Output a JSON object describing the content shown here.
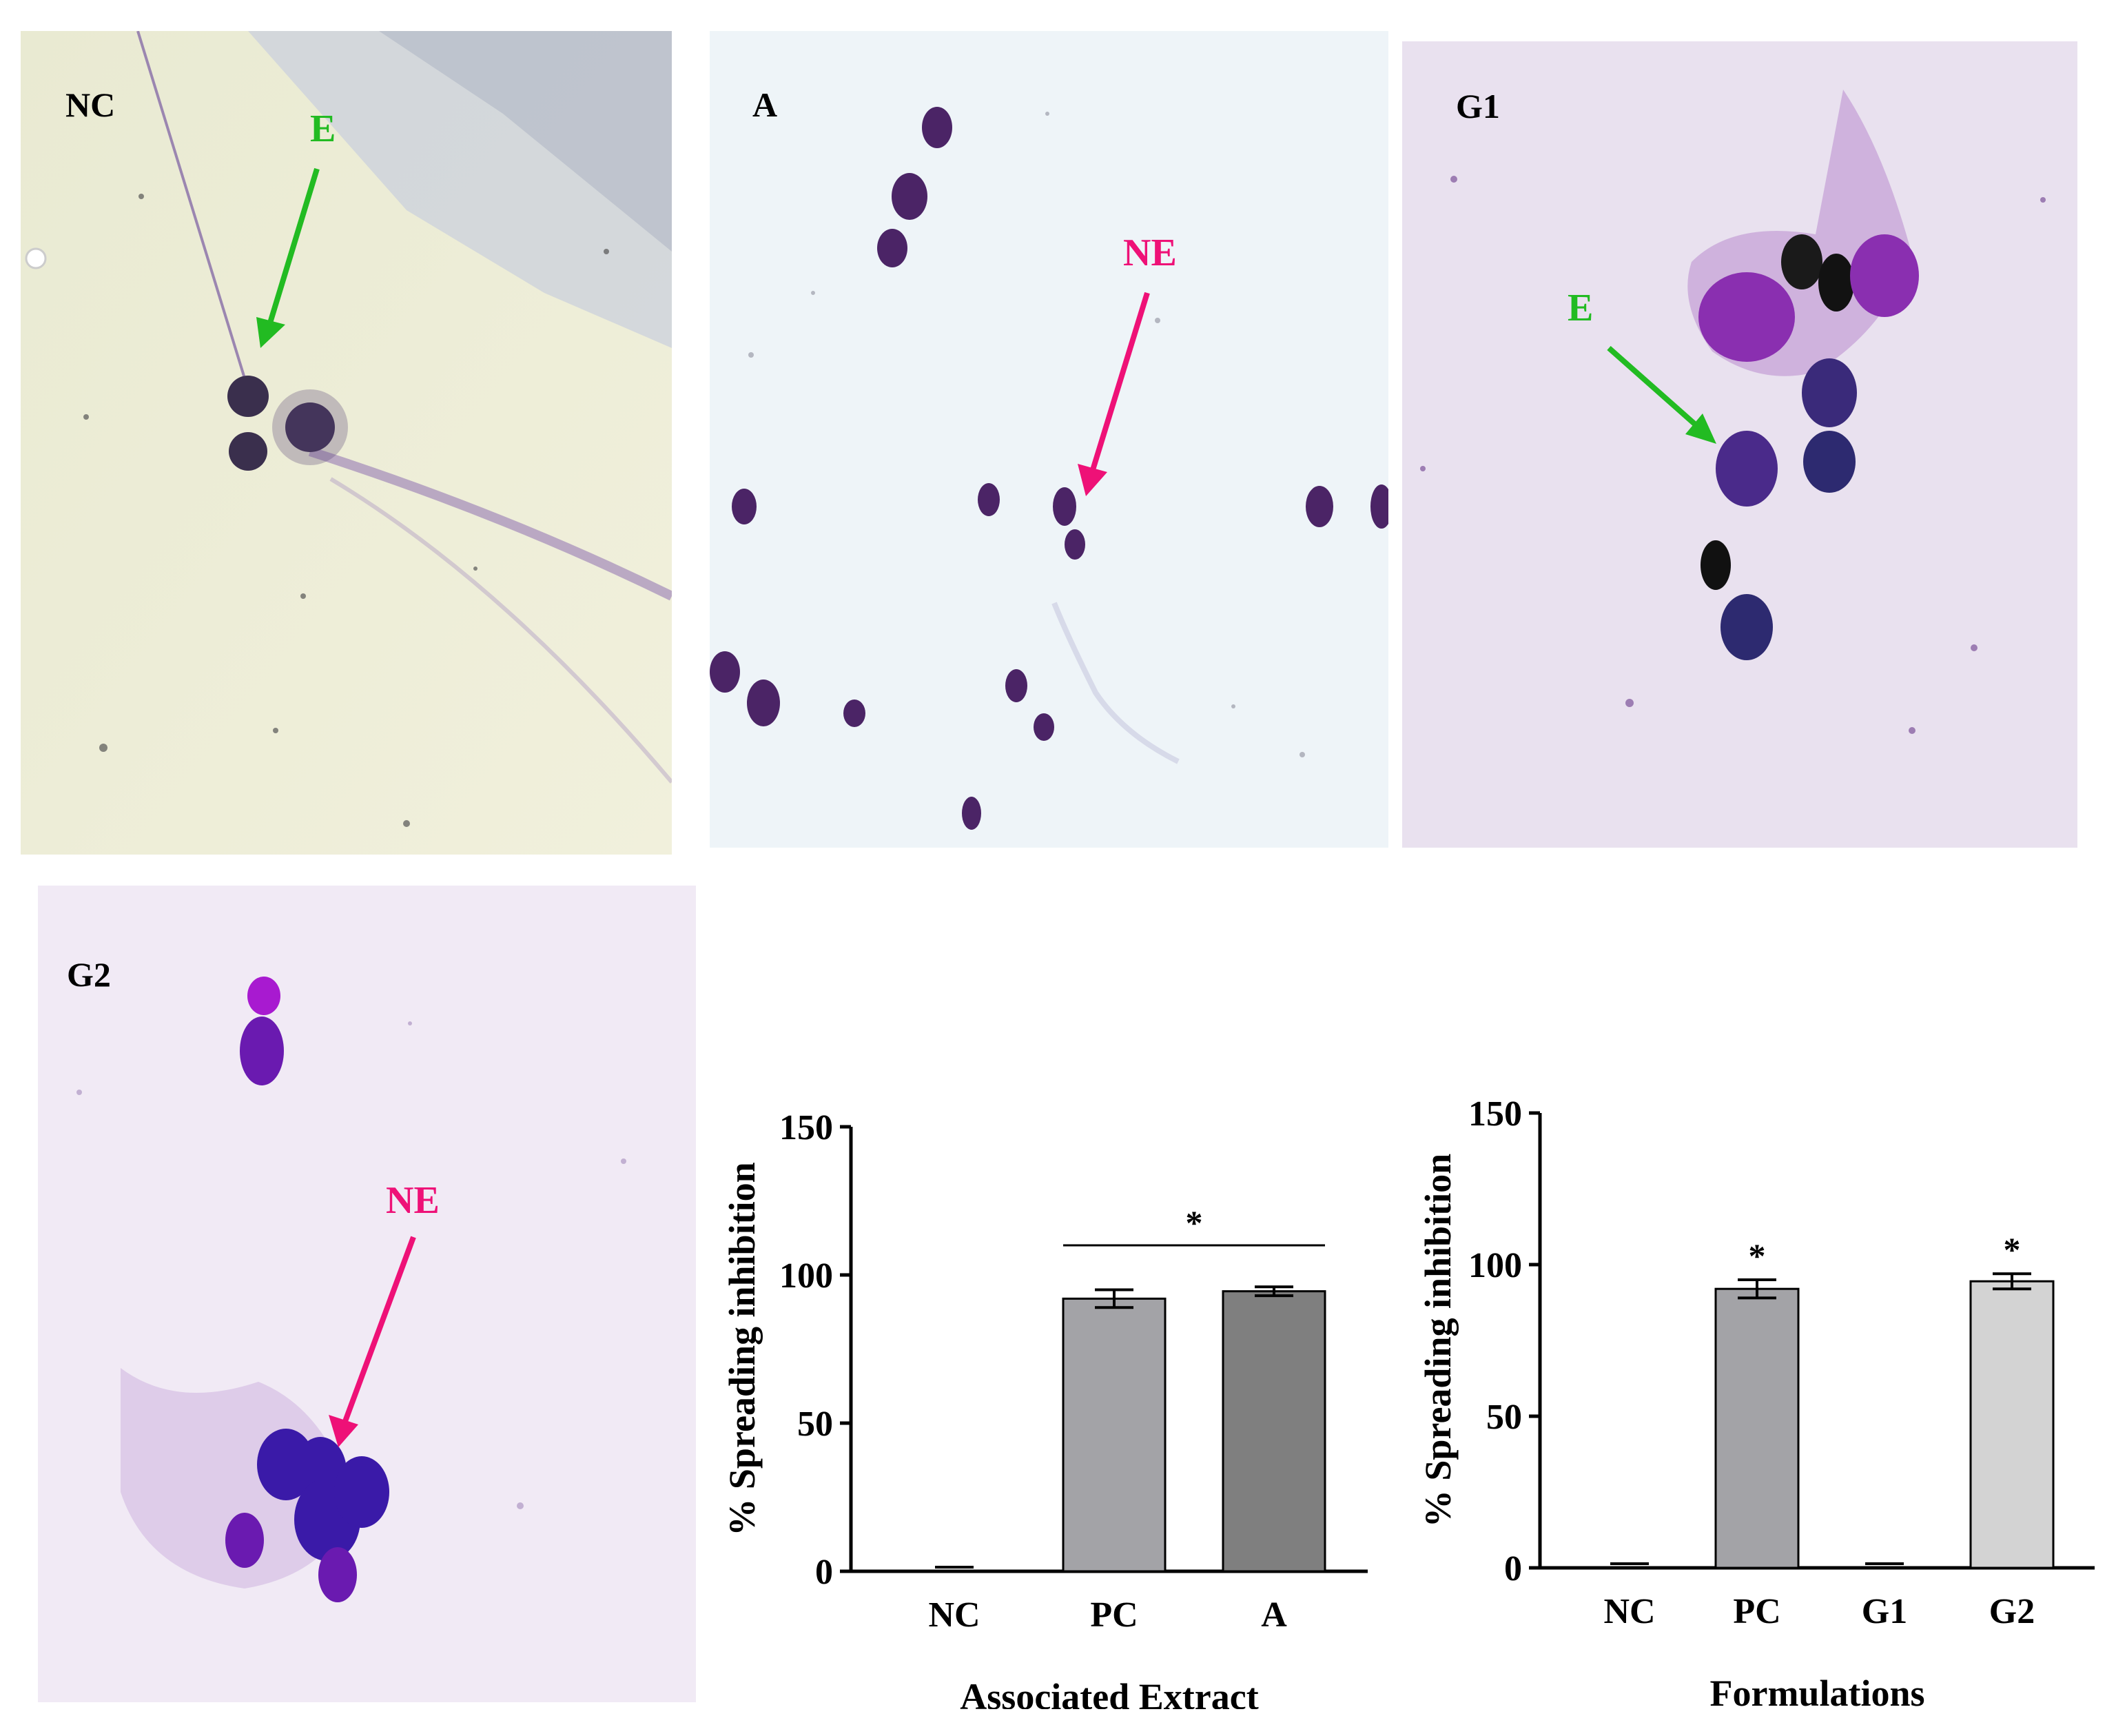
{
  "panels": {
    "nc": {
      "label": "NC",
      "annotation": "E"
    },
    "a": {
      "label": "A",
      "annotation": "NE"
    },
    "g1": {
      "label": "G1",
      "annotation": "E"
    },
    "g2": {
      "label": "G2",
      "annotation": "NE"
    }
  },
  "colors": {
    "annotation_green": "#22bb22",
    "annotation_pink": "#ee1177",
    "bar_pc": "#a3a3a7",
    "bar_a": "#7f7f7f",
    "bar_g2": "#d3d3d3"
  },
  "chart_data": [
    {
      "type": "bar",
      "categories": [
        "NC",
        "PC",
        "A"
      ],
      "values": [
        0,
        92,
        94.5
      ],
      "errors": [
        0,
        3,
        1.5
      ],
      "xlabel": "Associated Extract",
      "ylabel": "% Spreading inhibition",
      "ylim": [
        0,
        150
      ],
      "yticks": [
        "0",
        "50",
        "100",
        "150"
      ],
      "significance": {
        "symbol": "*",
        "from": "PC",
        "to": "A"
      },
      "grid": false
    },
    {
      "type": "bar",
      "categories": [
        "NC",
        "PC",
        "G1",
        "G2"
      ],
      "values": [
        0,
        92,
        0,
        94.5
      ],
      "errors": [
        0,
        3,
        0,
        2.5
      ],
      "significance_marks": [
        "",
        "*",
        "",
        "*"
      ],
      "xlabel": "Formulations",
      "ylabel": "% Spreading inhibition",
      "ylim": [
        0,
        150
      ],
      "yticks": [
        "0",
        "50",
        "100",
        "150"
      ],
      "grid": false
    }
  ]
}
